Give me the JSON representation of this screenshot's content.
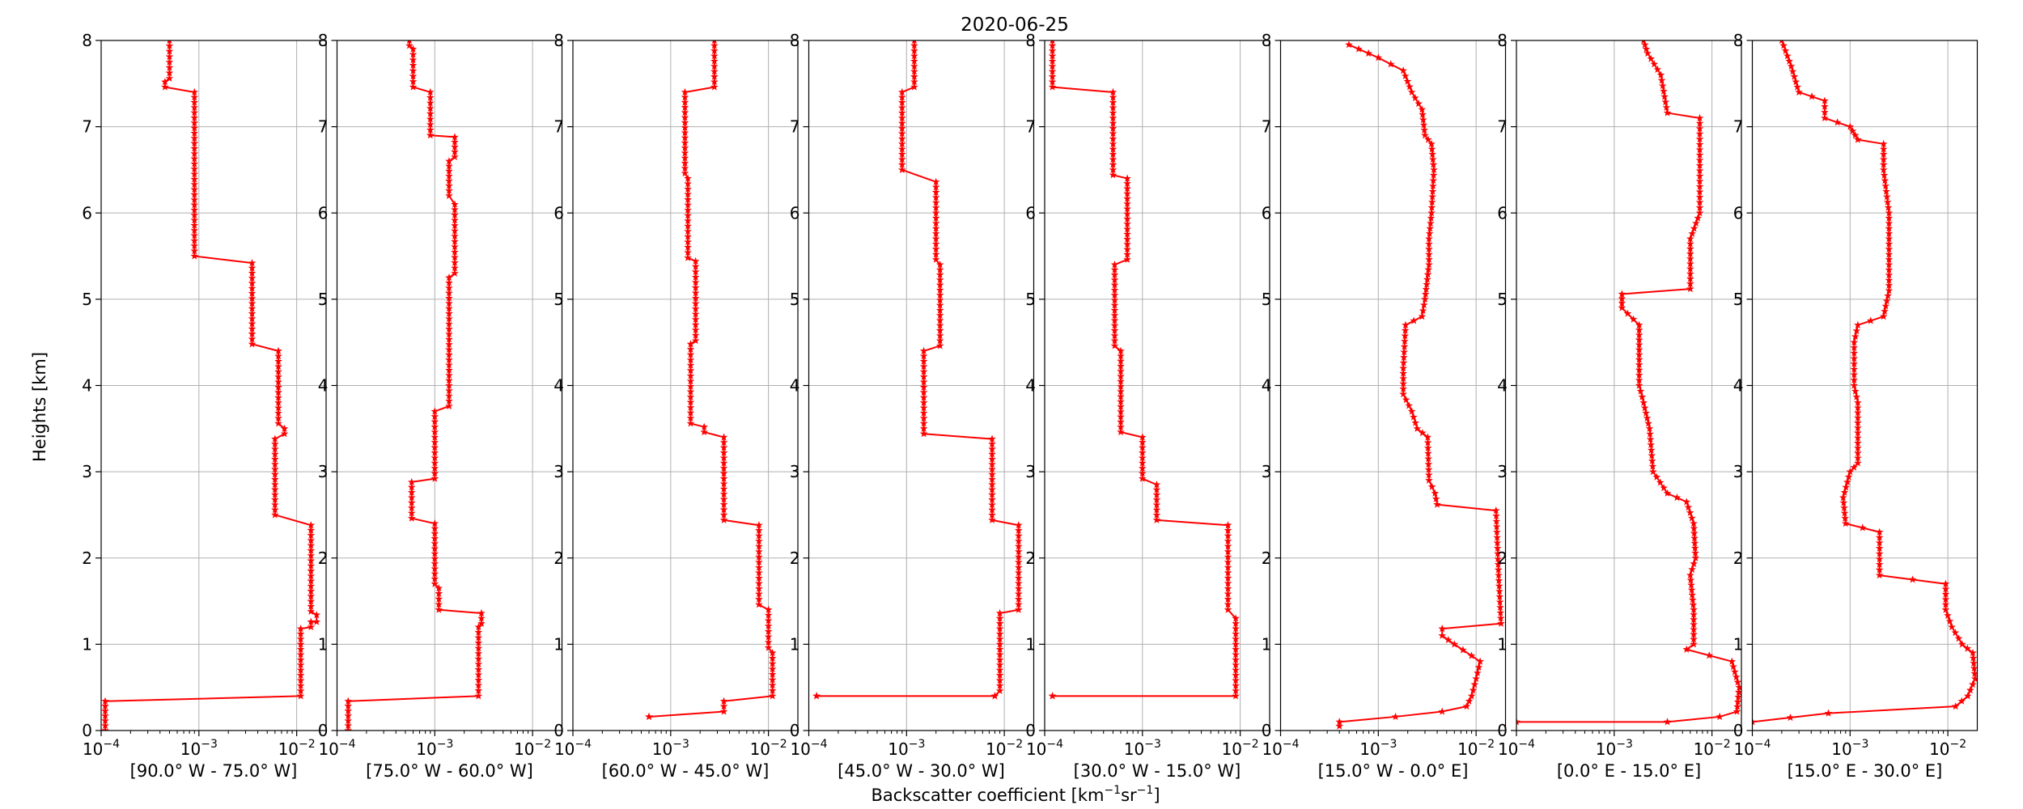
{
  "figure": {
    "title": "2020-06-25",
    "ylabel": "Heights [km]",
    "xlabel": "Backscatter coefficient [km⁻¹sr⁻¹]",
    "xlabel_parts": {
      "main": "Backscatter coefficient [km",
      "sup1": "−1",
      "mid": "sr",
      "sup2": "−1",
      "end": "]"
    }
  },
  "style": {
    "line_color": "#ff0000",
    "grid_color": "#b0b0b0",
    "marker": "star"
  },
  "chart_data": [
    {
      "type": "line",
      "xscale": "log",
      "xlim": [
        0.0001,
        0.02
      ],
      "ylim": [
        0,
        8
      ],
      "grid": true,
      "xticks": [
        0.0001,
        0.001,
        0.01
      ],
      "yticks": [
        0,
        1,
        2,
        3,
        4,
        5,
        6,
        7,
        8
      ],
      "xlabel": "[90.0° W - 75.0° W]",
      "segments": [
        {
          "x": 0.00011,
          "y0": 0.0,
          "y1": 0.34
        },
        {
          "x": 0.011,
          "y0": 0.4,
          "y1": 1.18
        },
        {
          "x": 0.014,
          "y0": 1.2,
          "y1": 1.26
        },
        {
          "x": 0.016,
          "y0": 1.26,
          "y1": 1.34
        },
        {
          "x": 0.014,
          "y0": 1.38,
          "y1": 2.38
        },
        {
          "x": 0.006,
          "y0": 2.5,
          "y1": 3.38
        },
        {
          "x": 0.0075,
          "y0": 3.44,
          "y1": 3.5
        },
        {
          "x": 0.0065,
          "y0": 3.56,
          "y1": 4.4
        },
        {
          "x": 0.0035,
          "y0": 4.48,
          "y1": 5.42
        },
        {
          "x": 0.0009,
          "y0": 5.5,
          "y1": 7.4
        },
        {
          "x": 0.00045,
          "y0": 7.46,
          "y1": 7.52
        },
        {
          "x": 0.0005,
          "y0": 7.56,
          "y1": 8.0
        }
      ]
    },
    {
      "type": "line",
      "xscale": "log",
      "xlim": [
        0.0001,
        0.02
      ],
      "ylim": [
        0,
        8
      ],
      "grid": true,
      "xticks": [
        0.0001,
        0.001,
        0.01
      ],
      "yticks": [
        0,
        1,
        2,
        3,
        4,
        5,
        6,
        7,
        8
      ],
      "xlabel": "[75.0° W - 60.0° W]",
      "segments": [
        {
          "x": 0.00013,
          "y0": 0.0,
          "y1": 0.34
        },
        {
          "x": 0.0028,
          "y0": 0.4,
          "y1": 1.2
        },
        {
          "x": 0.003,
          "y0": 1.24,
          "y1": 1.36
        },
        {
          "x": 0.0011,
          "y0": 1.4,
          "y1": 1.65
        },
        {
          "x": 0.001,
          "y0": 1.7,
          "y1": 2.4
        },
        {
          "x": 0.00058,
          "y0": 2.46,
          "y1": 2.88
        },
        {
          "x": 0.001,
          "y0": 2.92,
          "y1": 3.7
        },
        {
          "x": 0.0014,
          "y0": 3.76,
          "y1": 5.25
        },
        {
          "x": 0.0016,
          "y0": 5.3,
          "y1": 6.1
        },
        {
          "x": 0.0014,
          "y0": 6.2,
          "y1": 6.6
        },
        {
          "x": 0.0016,
          "y0": 6.65,
          "y1": 6.88
        },
        {
          "x": 0.0009,
          "y0": 6.9,
          "y1": 7.4
        },
        {
          "x": 0.0006,
          "y0": 7.46,
          "y1": 7.9
        },
        {
          "x": 0.00055,
          "y0": 7.94,
          "y1": 8.0
        }
      ]
    },
    {
      "type": "line",
      "xscale": "log",
      "xlim": [
        0.0001,
        0.02
      ],
      "ylim": [
        0,
        8
      ],
      "grid": true,
      "xticks": [
        0.0001,
        0.001,
        0.01
      ],
      "yticks": [
        0,
        1,
        2,
        3,
        4,
        5,
        6,
        7,
        8
      ],
      "xlabel": "[60.0° W - 45.0° W]",
      "segments": [
        {
          "x": 0.0006,
          "y0": 0.16,
          "y1": 0.16
        },
        {
          "x": 0.0035,
          "y0": 0.22,
          "y1": 0.34
        },
        {
          "x": 0.011,
          "y0": 0.4,
          "y1": 0.9
        },
        {
          "x": 0.01,
          "y0": 0.96,
          "y1": 1.4
        },
        {
          "x": 0.008,
          "y0": 1.46,
          "y1": 2.38
        },
        {
          "x": 0.0035,
          "y0": 2.44,
          "y1": 3.4
        },
        {
          "x": 0.0022,
          "y0": 3.46,
          "y1": 3.52
        },
        {
          "x": 0.0016,
          "y0": 3.56,
          "y1": 4.48
        },
        {
          "x": 0.0018,
          "y0": 4.52,
          "y1": 5.44
        },
        {
          "x": 0.0015,
          "y0": 5.48,
          "y1": 6.4
        },
        {
          "x": 0.0014,
          "y0": 6.46,
          "y1": 7.4
        },
        {
          "x": 0.0028,
          "y0": 7.46,
          "y1": 8.0
        }
      ]
    },
    {
      "type": "line",
      "xscale": "log",
      "xlim": [
        0.0001,
        0.02
      ],
      "ylim": [
        0,
        8
      ],
      "grid": true,
      "xticks": [
        0.0001,
        0.001,
        0.01
      ],
      "yticks": [
        0,
        1,
        2,
        3,
        4,
        5,
        6,
        7,
        8
      ],
      "xlabel": "[45.0° W - 30.0° W]",
      "segments": [
        {
          "x": 0.00012,
          "y0": 0.4,
          "y1": 0.4
        },
        {
          "x": 0.008,
          "y0": 0.4,
          "y1": 0.4
        },
        {
          "x": 0.009,
          "y0": 0.46,
          "y1": 1.36
        },
        {
          "x": 0.014,
          "y0": 1.4,
          "y1": 2.38
        },
        {
          "x": 0.0075,
          "y0": 2.44,
          "y1": 3.38
        },
        {
          "x": 0.0015,
          "y0": 3.44,
          "y1": 4.4
        },
        {
          "x": 0.0022,
          "y0": 4.46,
          "y1": 5.4
        },
        {
          "x": 0.002,
          "y0": 5.46,
          "y1": 6.36
        },
        {
          "x": 0.0009,
          "y0": 6.5,
          "y1": 7.4
        },
        {
          "x": 0.0012,
          "y0": 7.46,
          "y1": 8.0
        }
      ]
    },
    {
      "type": "line",
      "xscale": "log",
      "xlim": [
        0.0001,
        0.02
      ],
      "ylim": [
        0,
        8
      ],
      "grid": true,
      "xticks": [
        0.0001,
        0.001,
        0.01
      ],
      "yticks": [
        0,
        1,
        2,
        3,
        4,
        5,
        6,
        7,
        8
      ],
      "xlabel": "[30.0° W - 15.0° W]",
      "segments": [
        {
          "x": 0.00012,
          "y0": 0.4,
          "y1": 0.4
        },
        {
          "x": 0.009,
          "y0": 0.4,
          "y1": 1.3
        },
        {
          "x": 0.0075,
          "y0": 1.4,
          "y1": 2.38
        },
        {
          "x": 0.0014,
          "y0": 2.44,
          "y1": 2.85
        },
        {
          "x": 0.001,
          "y0": 2.92,
          "y1": 3.4
        },
        {
          "x": 0.0006,
          "y0": 3.46,
          "y1": 4.4
        },
        {
          "x": 0.00052,
          "y0": 4.46,
          "y1": 5.4
        },
        {
          "x": 0.0007,
          "y0": 5.46,
          "y1": 6.4
        },
        {
          "x": 0.0005,
          "y0": 6.44,
          "y1": 7.4
        },
        {
          "x": 0.00012,
          "y0": 7.46,
          "y1": 8.0
        }
      ]
    },
    {
      "type": "line",
      "xscale": "log",
      "xlim": [
        0.0001,
        0.02
      ],
      "ylim": [
        0,
        8
      ],
      "grid": true,
      "xticks": [
        0.0001,
        0.001,
        0.01
      ],
      "yticks": [
        0,
        1,
        2,
        3,
        4,
        5,
        6,
        7,
        8
      ],
      "xlabel": "[15.0° W - 0.0° E]",
      "points": [
        {
          "x": 0.0004,
          "y": 0.05
        },
        {
          "x": 0.0004,
          "y": 0.1
        },
        {
          "x": 0.0015,
          "y": 0.16
        },
        {
          "x": 0.0045,
          "y": 0.22
        },
        {
          "x": 0.008,
          "y": 0.28
        },
        {
          "x": 0.009,
          "y": 0.4
        },
        {
          "x": 0.01,
          "y": 0.6
        },
        {
          "x": 0.011,
          "y": 0.8
        },
        {
          "x": 0.006,
          "y": 1.0
        },
        {
          "x": 0.0045,
          "y": 1.1
        },
        {
          "x": 0.0045,
          "y": 1.18
        },
        {
          "x": 0.018,
          "y": 1.24
        },
        {
          "x": 0.017,
          "y": 1.8
        },
        {
          "x": 0.016,
          "y": 2.55
        },
        {
          "x": 0.004,
          "y": 2.62
        },
        {
          "x": 0.0038,
          "y": 2.75
        },
        {
          "x": 0.0033,
          "y": 2.9
        },
        {
          "x": 0.0032,
          "y": 3.4
        },
        {
          "x": 0.0025,
          "y": 3.5
        },
        {
          "x": 0.0022,
          "y": 3.7
        },
        {
          "x": 0.0018,
          "y": 3.9
        },
        {
          "x": 0.0018,
          "y": 4.2
        },
        {
          "x": 0.0019,
          "y": 4.7
        },
        {
          "x": 0.0028,
          "y": 4.8
        },
        {
          "x": 0.003,
          "y": 5.0
        },
        {
          "x": 0.0033,
          "y": 5.4
        },
        {
          "x": 0.0033,
          "y": 5.7
        },
        {
          "x": 0.0035,
          "y": 6.0
        },
        {
          "x": 0.0037,
          "y": 6.5
        },
        {
          "x": 0.0035,
          "y": 6.8
        },
        {
          "x": 0.003,
          "y": 6.9
        },
        {
          "x": 0.0028,
          "y": 7.2
        },
        {
          "x": 0.0022,
          "y": 7.4
        },
        {
          "x": 0.0018,
          "y": 7.65
        },
        {
          "x": 0.001,
          "y": 7.8
        },
        {
          "x": 0.0005,
          "y": 7.95
        }
      ]
    },
    {
      "type": "line",
      "xscale": "log",
      "xlim": [
        0.0001,
        0.02
      ],
      "ylim": [
        0,
        8
      ],
      "grid": true,
      "xticks": [
        0.0001,
        0.001,
        0.01
      ],
      "yticks": [
        0,
        1,
        2,
        3,
        4,
        5,
        6,
        7,
        8
      ],
      "xlabel": "[0.0° E - 15.0° E]",
      "points": [
        {
          "x": 0.0001,
          "y": 0.1
        },
        {
          "x": 0.0035,
          "y": 0.1
        },
        {
          "x": 0.012,
          "y": 0.16
        },
        {
          "x": 0.018,
          "y": 0.22
        },
        {
          "x": 0.019,
          "y": 0.5
        },
        {
          "x": 0.016,
          "y": 0.8
        },
        {
          "x": 0.0055,
          "y": 0.94
        },
        {
          "x": 0.0065,
          "y": 1.0
        },
        {
          "x": 0.0065,
          "y": 1.4
        },
        {
          "x": 0.006,
          "y": 1.8
        },
        {
          "x": 0.0068,
          "y": 2.0
        },
        {
          "x": 0.0065,
          "y": 2.4
        },
        {
          "x": 0.0055,
          "y": 2.65
        },
        {
          "x": 0.0035,
          "y": 2.75
        },
        {
          "x": 0.0025,
          "y": 3.0
        },
        {
          "x": 0.0023,
          "y": 3.5
        },
        {
          "x": 0.002,
          "y": 3.8
        },
        {
          "x": 0.0018,
          "y": 4.0
        },
        {
          "x": 0.0018,
          "y": 4.3
        },
        {
          "x": 0.0018,
          "y": 4.7
        },
        {
          "x": 0.0012,
          "y": 4.9
        },
        {
          "x": 0.0012,
          "y": 5.06
        },
        {
          "x": 0.006,
          "y": 5.12
        },
        {
          "x": 0.006,
          "y": 5.7
        },
        {
          "x": 0.0075,
          "y": 6.0
        },
        {
          "x": 0.0075,
          "y": 7.1
        },
        {
          "x": 0.0035,
          "y": 7.16
        },
        {
          "x": 0.003,
          "y": 7.6
        },
        {
          "x": 0.0022,
          "y": 7.85
        },
        {
          "x": 0.002,
          "y": 8.0
        }
      ]
    },
    {
      "type": "line",
      "xscale": "log",
      "xlim": [
        0.0001,
        0.02
      ],
      "ylim": [
        0,
        8
      ],
      "grid": true,
      "xticks": [
        0.0001,
        0.001,
        0.01
      ],
      "yticks": [
        0,
        1,
        2,
        3,
        4,
        5,
        6,
        7,
        8
      ],
      "xlabel": "[15.0° E - 30.0° E]",
      "points": [
        {
          "x": 0.0001,
          "y": 0.1
        },
        {
          "x": 0.0006,
          "y": 0.2
        },
        {
          "x": 0.012,
          "y": 0.28
        },
        {
          "x": 0.016,
          "y": 0.4
        },
        {
          "x": 0.019,
          "y": 0.6
        },
        {
          "x": 0.018,
          "y": 0.9
        },
        {
          "x": 0.014,
          "y": 1.0
        },
        {
          "x": 0.011,
          "y": 1.2
        },
        {
          "x": 0.0095,
          "y": 1.4
        },
        {
          "x": 0.0095,
          "y": 1.7
        },
        {
          "x": 0.002,
          "y": 1.8
        },
        {
          "x": 0.002,
          "y": 2.3
        },
        {
          "x": 0.0009,
          "y": 2.4
        },
        {
          "x": 0.00085,
          "y": 2.7
        },
        {
          "x": 0.001,
          "y": 3.0
        },
        {
          "x": 0.0012,
          "y": 3.1
        },
        {
          "x": 0.0012,
          "y": 3.8
        },
        {
          "x": 0.0011,
          "y": 4.0
        },
        {
          "x": 0.0011,
          "y": 4.5
        },
        {
          "x": 0.0012,
          "y": 4.7
        },
        {
          "x": 0.0022,
          "y": 4.8
        },
        {
          "x": 0.0025,
          "y": 5.1
        },
        {
          "x": 0.0025,
          "y": 6.0
        },
        {
          "x": 0.0022,
          "y": 6.5
        },
        {
          "x": 0.0022,
          "y": 6.8
        },
        {
          "x": 0.0012,
          "y": 6.85
        },
        {
          "x": 0.001,
          "y": 7.0
        },
        {
          "x": 0.00055,
          "y": 7.1
        },
        {
          "x": 0.00055,
          "y": 7.3
        },
        {
          "x": 0.0003,
          "y": 7.4
        },
        {
          "x": 0.00025,
          "y": 7.7
        },
        {
          "x": 0.0002,
          "y": 8.0
        }
      ]
    }
  ]
}
